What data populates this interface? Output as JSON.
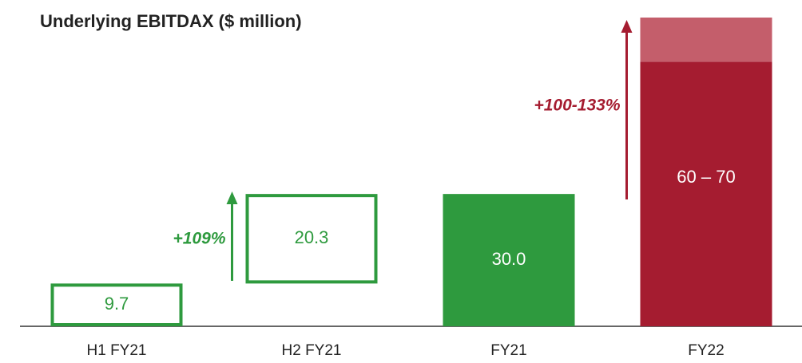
{
  "chart_data": {
    "type": "bar",
    "title": "Underlying EBITDAX ($ million)",
    "categories": [
      "H1 FY21",
      "H2 FY21",
      "FY21",
      "FY22"
    ],
    "values": [
      9.7,
      20.3,
      30.0,
      60
    ],
    "value_labels": [
      "9.7",
      "20.3",
      "30.0",
      "60 – 70"
    ],
    "extension": [
      null,
      null,
      null,
      10
    ],
    "floating": [
      false,
      true,
      false,
      false
    ],
    "outlined": [
      true,
      true,
      false,
      false
    ],
    "colors": [
      "#2e9a3e",
      "#2e9a3e",
      "#2e9a3e",
      "#a51c30"
    ],
    "extension_color": "#c45e6b",
    "ylim": [
      0,
      70
    ],
    "annotations": [
      {
        "text": "+109%",
        "category": 1,
        "color": "#2e9a3e"
      },
      {
        "text": "+100-133%",
        "category": 3,
        "color": "#a51c30"
      }
    ]
  }
}
